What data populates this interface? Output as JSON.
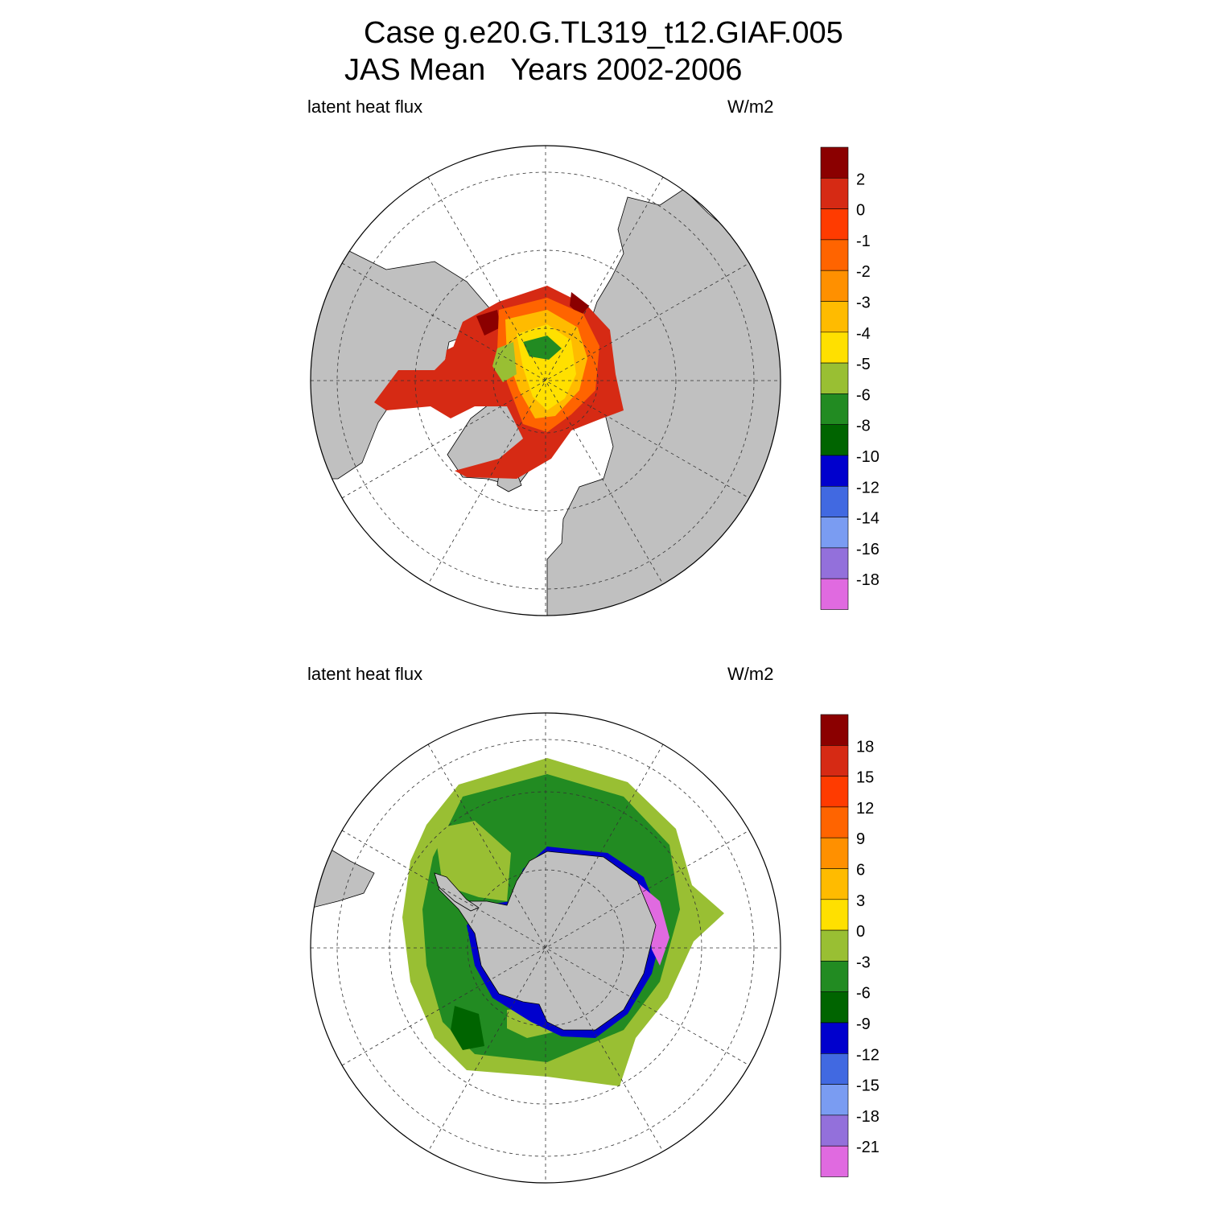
{
  "header": {
    "title_line1": "Case g.e20.G.TL319_t12.GIAF.005",
    "title_line2": "JAS Mean   Years 2002-2006"
  },
  "panels": [
    {
      "id": "north",
      "hemisphere": "Northern Hemisphere",
      "variable_label": "latent heat flux",
      "units_label": "W/m2",
      "colorbar": {
        "labels": [
          "2",
          "0",
          "-1",
          "-2",
          "-3",
          "-4",
          "-5",
          "-6",
          "-8",
          "-10",
          "-12",
          "-14",
          "-16",
          "-18"
        ],
        "colors": [
          "#8b0000",
          "#d62a14",
          "#ff3b00",
          "#ff6400",
          "#ff9000",
          "#ffbb00",
          "#ffe000",
          "#99bf33",
          "#228b22",
          "#006400",
          "#0000cd",
          "#4169e1",
          "#7a9cf2",
          "#9370db",
          "#e06ae0"
        ]
      }
    },
    {
      "id": "south",
      "hemisphere": "Southern Hemisphere",
      "variable_label": "latent heat flux",
      "units_label": "W/m2",
      "colorbar": {
        "labels": [
          "18",
          "15",
          "12",
          "9",
          "6",
          "3",
          "0",
          "-3",
          "-6",
          "-9",
          "-12",
          "-15",
          "-18",
          "-21"
        ],
        "colors": [
          "#8b0000",
          "#d62a14",
          "#ff3b00",
          "#ff6400",
          "#ff9000",
          "#ffbb00",
          "#ffe000",
          "#99bf33",
          "#228b22",
          "#006400",
          "#0000cd",
          "#4169e1",
          "#7a9cf2",
          "#9370db",
          "#e06ae0"
        ]
      }
    }
  ]
}
